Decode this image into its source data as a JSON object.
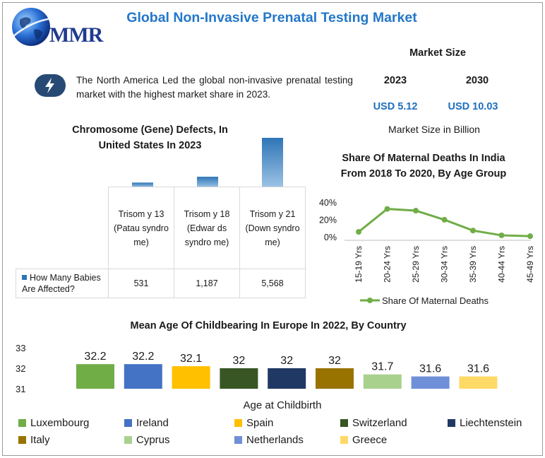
{
  "header": {
    "logo_text": "MMR",
    "title": "Global Non-Invasive Prenatal Testing Market"
  },
  "summary": {
    "text": "The North America Led the global non-invasive prenatal testing market with the highest market share in 2023."
  },
  "market_size": {
    "title": "Market Size",
    "year_start": "2023",
    "year_end": "2030",
    "value_start": "USD 5.12",
    "value_end": "USD 10.03",
    "unit_note": "Market Size in Billion"
  },
  "chart_data": [
    {
      "type": "bar",
      "title": "Chromosome (Gene) Defects, In United States In 2023",
      "categories": [
        "Trisomy 13 (Patau syndrome)",
        "Trisomy 18 (Edwards syndrome)",
        "Trisomy 21 (Down syndrome)"
      ],
      "category_display": [
        "Trisom y 13 (Patau syndro me)",
        "Trisom y 18 (Edwar ds syndro me)",
        "Trisom y 21 (Down syndro me)"
      ],
      "series": [
        {
          "name": "How Many Babies Are Affected?",
          "values": [
            531,
            1187,
            5568
          ],
          "value_labels": [
            "531",
            "1,187",
            "5,568"
          ]
        }
      ],
      "color": "#2e75b6"
    },
    {
      "type": "line",
      "title": "Share Of Maternal Deaths In India From 2018 To 2020, By Age Group",
      "categories": [
        "15-19 Yrs",
        "20-24 Yrs",
        "25-29 Yrs",
        "30-34 Yrs",
        "35-39 Yrs",
        "40-44 Yrs",
        "45-49 Yrs"
      ],
      "series": [
        {
          "name": "Share Of Maternal Deaths",
          "values": [
            6.5,
            33,
            31,
            20.5,
            8,
            2.5,
            1.5
          ]
        }
      ],
      "yticks": [
        "40%",
        "20%",
        "0%"
      ],
      "ylim": [
        0,
        40
      ],
      "color": "#70ad47"
    },
    {
      "type": "bar",
      "title": "Mean Age Of Childbearing In Europe In 2022, By Country",
      "xlabel": "Age at Childbirth",
      "categories": [
        "Luxembourg",
        "Ireland",
        "Spain",
        "Switzerland",
        "Liechtenstein",
        "Italy",
        "Cyprus",
        "Netherlands",
        "Greece"
      ],
      "values": [
        32.2,
        32.2,
        32.1,
        32,
        32,
        32,
        31.7,
        31.6,
        31.6
      ],
      "colors": [
        "#70ad47",
        "#4472c4",
        "#ffc000",
        "#375623",
        "#203864",
        "#997300",
        "#a9d18e",
        "#6f8fd8",
        "#ffd966"
      ],
      "yticks": [
        "33",
        "32",
        "31"
      ],
      "ylim": [
        31,
        33
      ],
      "legend": "bottom"
    }
  ]
}
